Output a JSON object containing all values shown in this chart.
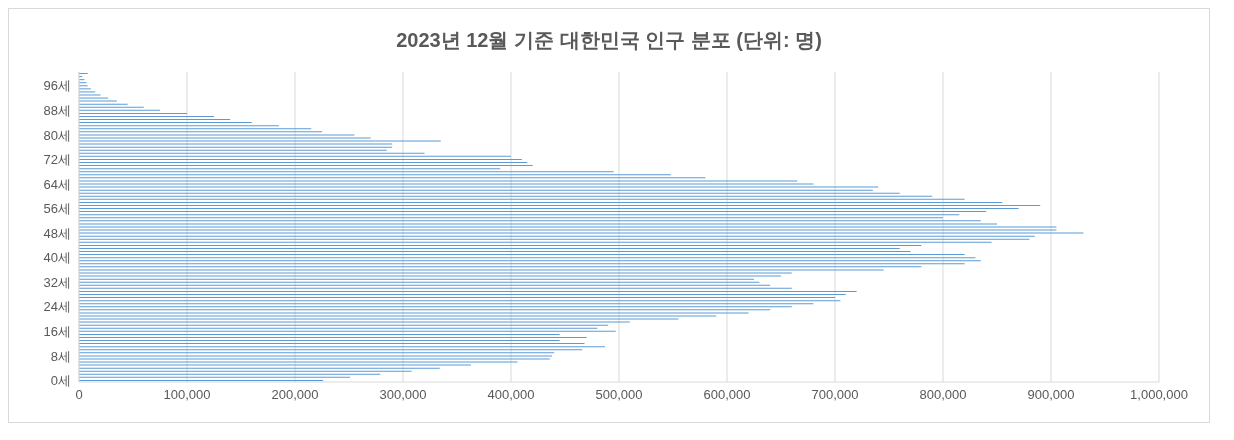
{
  "chart_data": {
    "type": "bar",
    "orientation": "horizontal",
    "title": "2023년 12월 기준 대한민국 인구 분포 (단위: 명)",
    "categories": [
      null,
      null,
      null,
      null,
      "96세",
      null,
      null,
      null,
      null,
      null,
      null,
      null,
      "88세",
      null,
      null,
      null,
      null,
      null,
      null,
      null,
      "80세",
      null,
      null,
      null,
      null,
      null,
      null,
      null,
      "72세",
      null,
      null,
      null,
      null,
      null,
      null,
      null,
      "64세",
      null,
      null,
      null,
      null,
      null,
      null,
      null,
      "56세",
      null,
      null,
      null,
      null,
      null,
      null,
      null,
      "48세",
      null,
      null,
      null,
      null,
      null,
      null,
      null,
      "40세",
      null,
      null,
      null,
      null,
      null,
      null,
      null,
      "32세",
      null,
      null,
      null,
      null,
      null,
      null,
      null,
      "24세",
      null,
      null,
      null,
      null,
      null,
      null,
      null,
      "16세",
      null,
      null,
      null,
      null,
      null,
      null,
      null,
      "8세",
      null,
      null,
      null,
      null,
      null,
      null,
      null,
      "0세"
    ],
    "values": [
      8000,
      3000,
      5000,
      7000,
      8000,
      11000,
      15000,
      20000,
      27000,
      35000,
      45000,
      60000,
      75000,
      100000,
      125000,
      140000,
      160000,
      185000,
      215000,
      225000,
      255000,
      270000,
      335000,
      290000,
      290000,
      285000,
      320000,
      400000,
      410000,
      415000,
      420000,
      390000,
      495000,
      548000,
      580000,
      665000,
      680000,
      740000,
      735000,
      760000,
      790000,
      820000,
      855000,
      890000,
      870000,
      840000,
      815000,
      800000,
      835000,
      850000,
      905000,
      905000,
      930000,
      885000,
      880000,
      845000,
      780000,
      760000,
      770000,
      820000,
      830000,
      835000,
      820000,
      780000,
      745000,
      660000,
      650000,
      625000,
      630000,
      640000,
      660000,
      720000,
      710000,
      700000,
      705000,
      680000,
      660000,
      640000,
      620000,
      590000,
      555000,
      510000,
      490000,
      480000,
      497000,
      445000,
      470000,
      445000,
      468000,
      487000,
      466000,
      440000,
      438000,
      436000,
      406000,
      363000,
      334000,
      308000,
      279000,
      251000,
      226000
    ],
    "color": "#5b9bd5",
    "xlim": [
      0,
      1000000
    ],
    "xticks": [
      0,
      {
        "value": 100000,
        "label": "100,000"
      },
      {
        "value": 200000,
        "label": "200,000"
      },
      {
        "value": 300000,
        "label": "300,000"
      },
      {
        "value": 400000,
        "label": "400,000"
      },
      {
        "value": 500000,
        "label": "500,000"
      },
      {
        "value": 600000,
        "label": "600,000"
      },
      {
        "value": 700000,
        "label": "700,000"
      },
      {
        "value": 800000,
        "label": "800,000"
      },
      {
        "value": 900000,
        "label": "900,000"
      },
      {
        "value": 1000000,
        "label": "1,000,000"
      }
    ],
    "grid": "x"
  }
}
